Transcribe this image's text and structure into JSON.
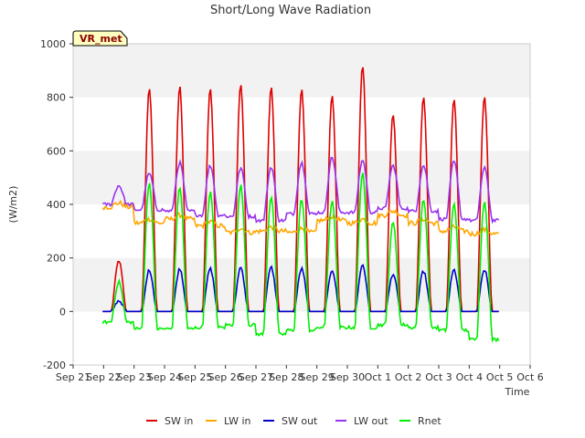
{
  "chart_data": {
    "type": "line",
    "title": "Short/Long Wave Radiation",
    "xlabel": "Time",
    "ylabel": "(W/m2)",
    "badge": "VR_met",
    "ylim": [
      -200,
      1000
    ],
    "yticks": [
      -200,
      0,
      200,
      400,
      600,
      800,
      1000
    ],
    "xlim": [
      "Sep 21",
      "Oct 6"
    ],
    "xtick_labels": [
      "Sep 21",
      "Sep 22",
      "Sep 23",
      "Sep 24",
      "Sep 25",
      "Sep 26",
      "Sep 27",
      "Sep 28",
      "Sep 29",
      "Sep 30",
      "Oct 1",
      "Oct 2",
      "Oct 3",
      "Oct 4",
      "Oct 5",
      "Oct 6"
    ],
    "grid": "horizontal bands",
    "legend": "bottom",
    "days": [
      "Sep 22",
      "Sep 23",
      "Sep 24",
      "Sep 25",
      "Sep 26",
      "Sep 27",
      "Sep 28",
      "Sep 29",
      "Sep 30",
      "Oct 1",
      "Oct 2",
      "Oct 3",
      "Oct 4",
      "Oct 5"
    ],
    "series": [
      {
        "name": "SW in",
        "color": "#dd0000",
        "daily_peak": [
          190,
          830,
          840,
          830,
          850,
          840,
          830,
          805,
          920,
          740,
          800,
          795,
          800,
          805
        ],
        "night": 0
      },
      {
        "name": "LW in",
        "color": "#ffa500",
        "daily_mean": [
          390,
          330,
          345,
          320,
          295,
          300,
          295,
          340,
          330,
          360,
          330,
          300,
          290,
          305
        ]
      },
      {
        "name": "SW out",
        "color": "#0000cc",
        "daily_peak": [
          40,
          155,
          160,
          160,
          165,
          165,
          160,
          155,
          175,
          140,
          150,
          155,
          155,
          160
        ],
        "night": 0
      },
      {
        "name": "LW out",
        "color": "#9933ee",
        "daily_peak": [
          470,
          515,
          555,
          545,
          535,
          540,
          555,
          575,
          565,
          545,
          545,
          560,
          535,
          565
        ],
        "daily_night": [
          400,
          380,
          375,
          360,
          355,
          340,
          365,
          370,
          370,
          385,
          375,
          345,
          340,
          365
        ]
      },
      {
        "name": "Rnet",
        "color": "#00ee00",
        "daily_peak": [
          110,
          480,
          465,
          445,
          470,
          430,
          420,
          410,
          520,
          330,
          420,
          400,
          410,
          385
        ],
        "daily_night": [
          -40,
          -65,
          -65,
          -60,
          -50,
          -85,
          -70,
          -60,
          -60,
          -50,
          -60,
          -70,
          -105,
          -75
        ]
      }
    ]
  }
}
